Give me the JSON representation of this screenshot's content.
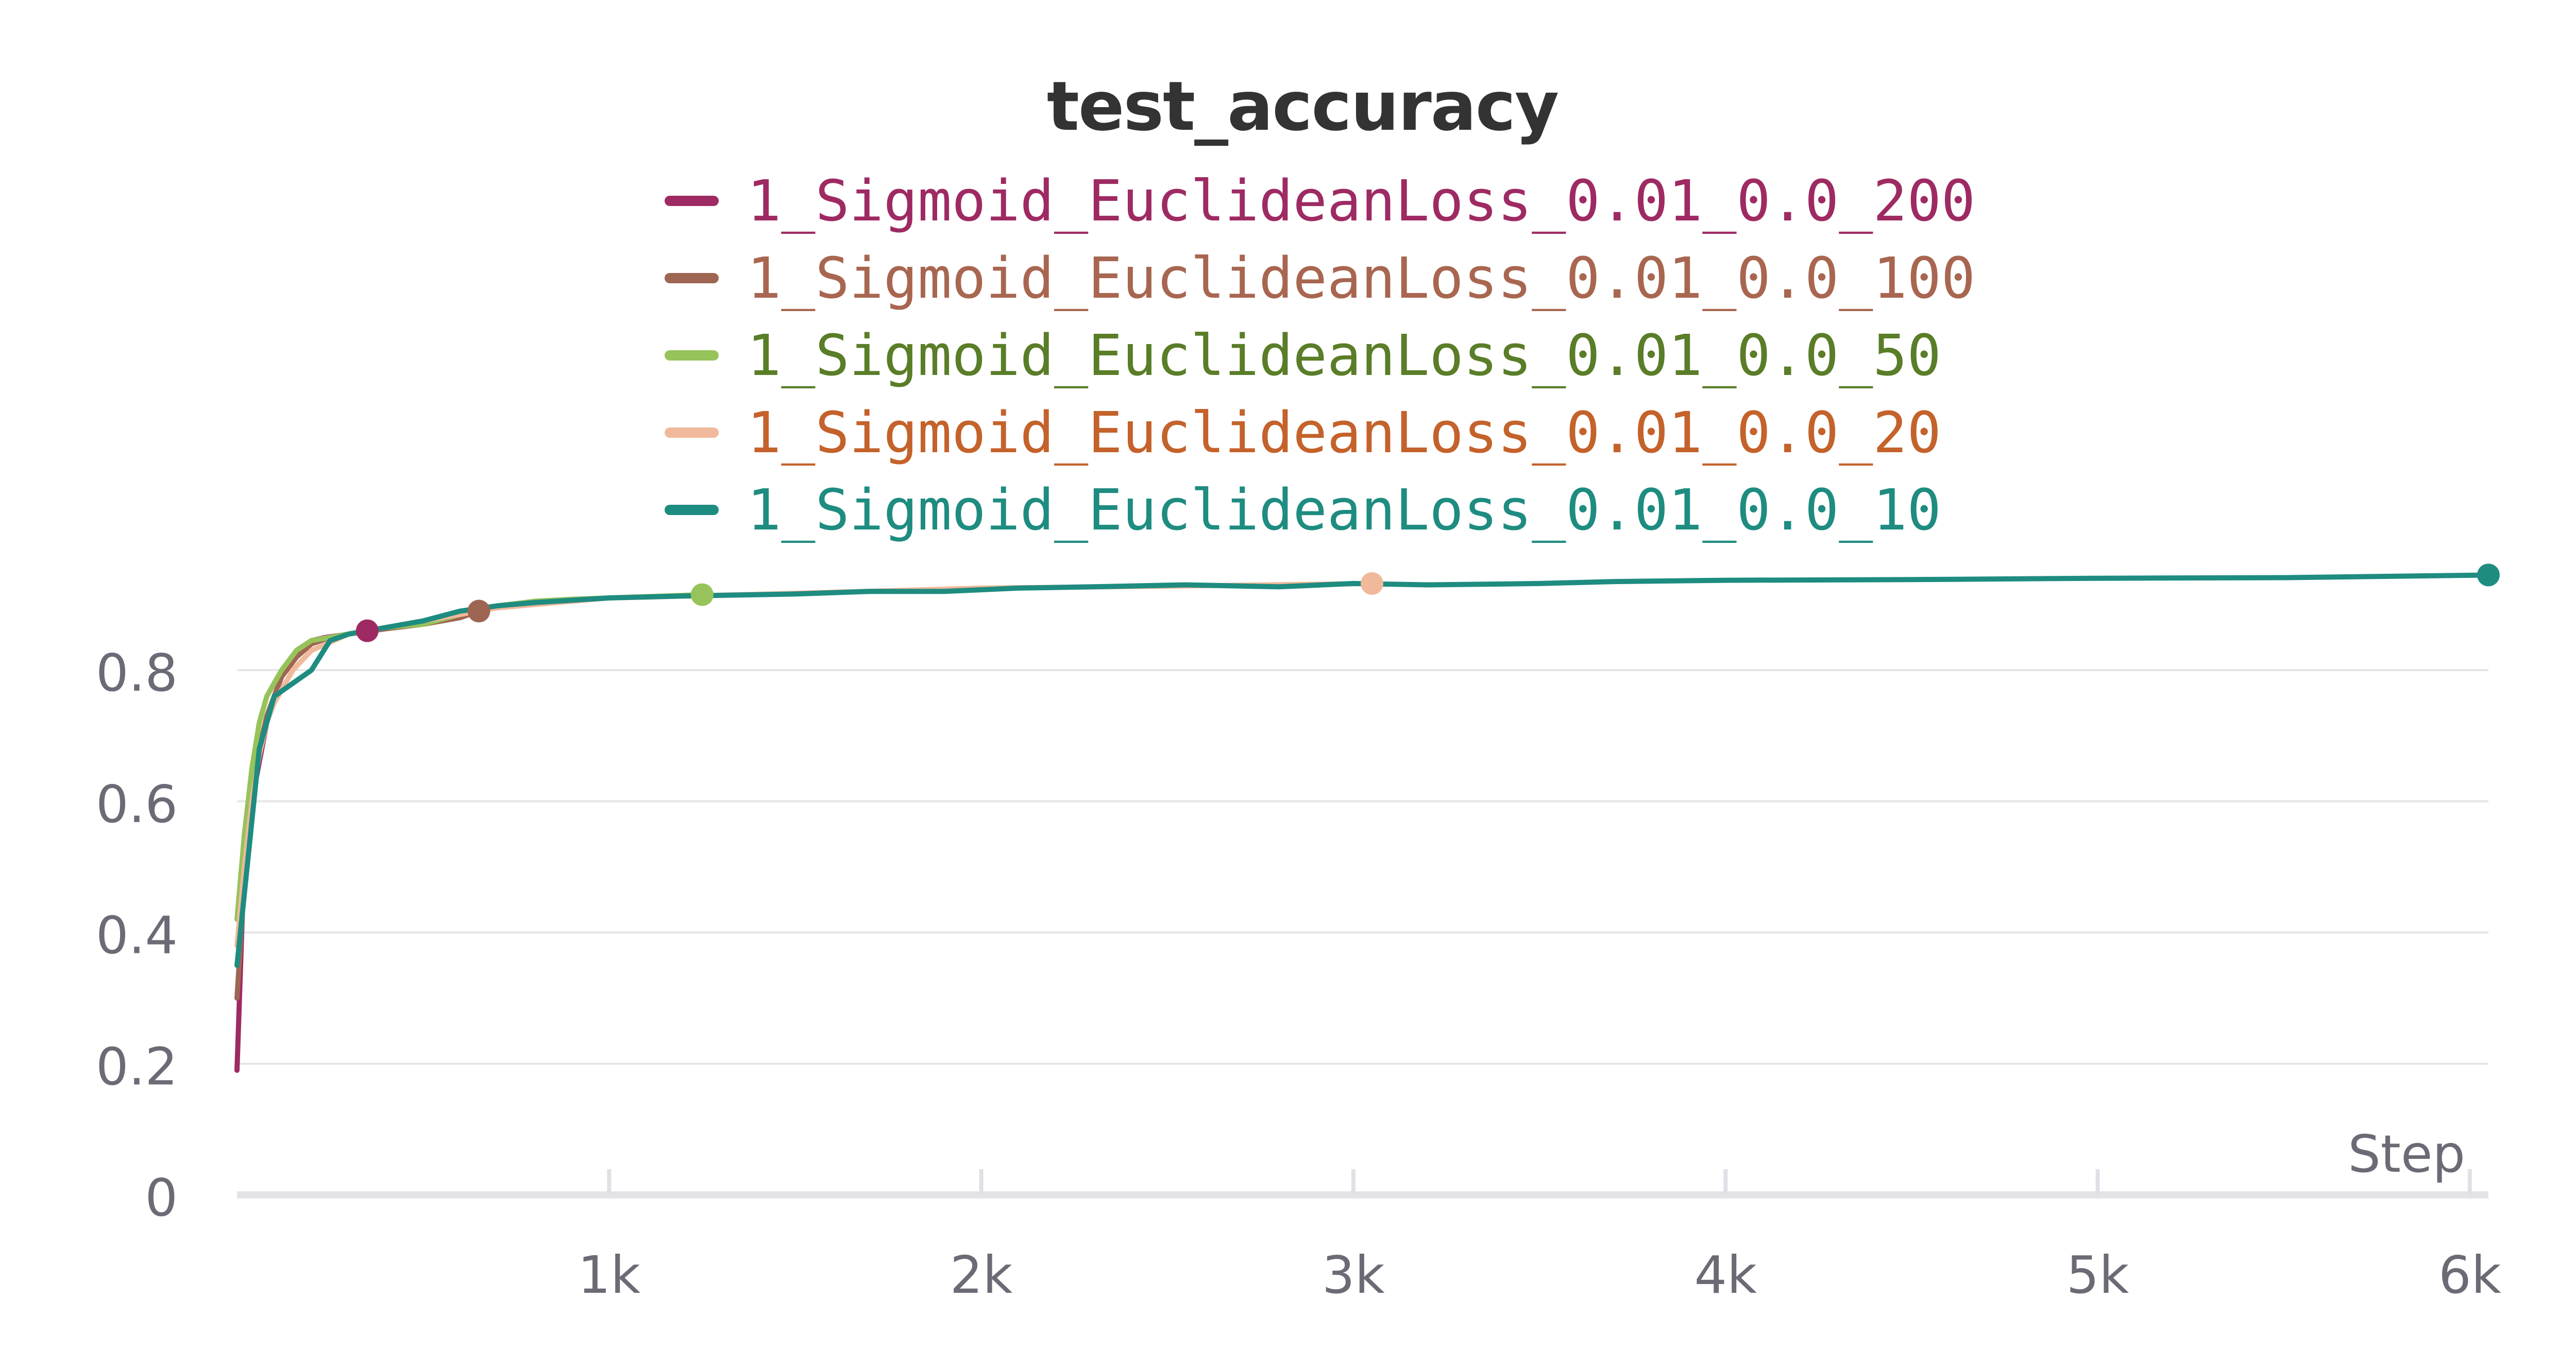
{
  "chart_data": {
    "type": "line",
    "title": "test_accuracy",
    "xlabel": "Step",
    "ylabel": "",
    "xlim": [
      0,
      6050
    ],
    "ylim": [
      0,
      0.95
    ],
    "x_ticks": [
      1000,
      2000,
      3000,
      4000,
      5000,
      6000
    ],
    "x_tick_labels": [
      "1k",
      "2k",
      "3k",
      "4k",
      "5k",
      "6k"
    ],
    "y_ticks": [
      0,
      0.2,
      0.4,
      0.6,
      0.8
    ],
    "y_tick_labels": [
      "0",
      "0.2",
      "0.4",
      "0.6",
      "0.8"
    ],
    "grid": true,
    "legend_position": "top-center",
    "series": [
      {
        "name": "1_Sigmoid_EuclideanLoss_0.01_0.0_200",
        "color": "#9e2a63",
        "text_color": "#9e2a63",
        "x": [
          0,
          20,
          40,
          60,
          80,
          100,
          120,
          160,
          200,
          240,
          280,
          320,
          350
        ],
        "y": [
          0.19,
          0.52,
          0.6,
          0.66,
          0.72,
          0.76,
          0.79,
          0.83,
          0.845,
          0.85,
          0.853,
          0.857,
          0.86
        ]
      },
      {
        "name": "1_Sigmoid_EuclideanLoss_0.01_0.0_100",
        "color": "#9e6652",
        "text_color": "#a86650",
        "x": [
          0,
          20,
          40,
          60,
          80,
          100,
          120,
          160,
          200,
          250,
          300,
          400,
          500,
          600,
          650
        ],
        "y": [
          0.3,
          0.48,
          0.6,
          0.68,
          0.73,
          0.76,
          0.79,
          0.82,
          0.84,
          0.85,
          0.855,
          0.863,
          0.87,
          0.88,
          0.89
        ]
      },
      {
        "name": "1_Sigmoid_EuclideanLoss_0.01_0.0_50",
        "color": "#96c35a",
        "text_color": "#5a7d28",
        "x": [
          0,
          20,
          40,
          60,
          80,
          100,
          120,
          160,
          200,
          250,
          300,
          400,
          500,
          600,
          700,
          800,
          900,
          1000,
          1100,
          1250
        ],
        "y": [
          0.42,
          0.55,
          0.65,
          0.72,
          0.76,
          0.78,
          0.8,
          0.83,
          0.845,
          0.85,
          0.855,
          0.865,
          0.87,
          0.885,
          0.898,
          0.905,
          0.908,
          0.91,
          0.912,
          0.915
        ]
      },
      {
        "name": "1_Sigmoid_EuclideanLoss_0.01_0.0_20",
        "color": "#f0b99b",
        "text_color": "#c4622b",
        "x": [
          0,
          20,
          40,
          60,
          80,
          100,
          150,
          200,
          300,
          400,
          500,
          700,
          1000,
          1500,
          2000,
          2500,
          3050
        ],
        "y": [
          0.38,
          0.5,
          0.6,
          0.67,
          0.72,
          0.75,
          0.8,
          0.83,
          0.855,
          0.865,
          0.875,
          0.895,
          0.91,
          0.917,
          0.925,
          0.928,
          0.932
        ]
      },
      {
        "name": "1_Sigmoid_EuclideanLoss_0.01_0.0_10",
        "color": "#1e8c80",
        "text_color": "#1e8c80",
        "x": [
          0,
          60,
          100,
          200,
          250,
          300,
          400,
          500,
          600,
          700,
          800,
          1000,
          1200,
          1500,
          1700,
          1900,
          2100,
          2300,
          2550,
          2800,
          3000,
          3200,
          3500,
          3700,
          4000,
          4500,
          5000,
          5500,
          6050
        ],
        "y": [
          0.35,
          0.68,
          0.76,
          0.8,
          0.845,
          0.855,
          0.865,
          0.875,
          0.89,
          0.898,
          0.903,
          0.91,
          0.913,
          0.916,
          0.92,
          0.92,
          0.925,
          0.927,
          0.93,
          0.927,
          0.932,
          0.93,
          0.932,
          0.935,
          0.937,
          0.938,
          0.94,
          0.941,
          0.945
        ]
      }
    ]
  }
}
